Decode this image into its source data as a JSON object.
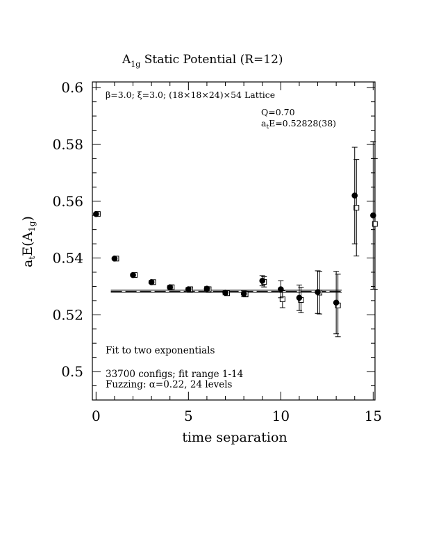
{
  "chart_data": {
    "type": "scatter",
    "title_main": "A",
    "title_sub": "1g",
    "title_rest": " Static Potential (R=12)",
    "xlabel": "time separation",
    "ylabel_main": "a",
    "ylabel_t": "t",
    "ylabel_mid": "E(A",
    "ylabel_sub": "1g",
    "ylabel_end": ")",
    "xlim": [
      -0.2,
      15.1
    ],
    "ylim": [
      0.49,
      0.602
    ],
    "x_ticks": [
      0,
      5,
      10,
      15
    ],
    "x_tick_labels": [
      "0",
      "5",
      "10",
      "15"
    ],
    "y_ticks": [
      0.5,
      0.52,
      0.54,
      0.56,
      0.58,
      0.6
    ],
    "y_tick_labels": [
      "0.5",
      "0.52",
      "0.54",
      "0.56",
      "0.58",
      "0.6"
    ],
    "annotations": {
      "lattice": "β=3.0; ξ=3.0; (18×18×24)×54 Lattice",
      "q": "Q=0.70",
      "energy_a": "a",
      "energy_t": "t",
      "energy_rest": "E=0.52828(38)",
      "fit": "Fit to two exponentials",
      "configs": "33700 configs; fit range 1-14",
      "fuzzing": "Fuzzing: α=0.22, 24 levels"
    },
    "fit": {
      "x_range": [
        0.8,
        13.3
      ],
      "value": 0.52828,
      "error": 0.00038
    },
    "series": [
      {
        "marker": "filled-circle",
        "x": [
          0,
          1,
          2,
          3,
          4,
          5,
          6,
          7,
          8,
          9,
          10,
          11,
          12,
          13,
          14,
          15
        ],
        "y": [
          0.5555,
          0.5398,
          0.534,
          0.5315,
          0.5297,
          0.529,
          0.5292,
          0.5278,
          0.5274,
          0.532,
          0.529,
          0.526,
          0.528,
          0.5243,
          0.562,
          0.555
        ],
        "err": [
          0.0003,
          0.0004,
          0.0004,
          0.0005,
          0.0006,
          0.0006,
          0.0007,
          0.0008,
          0.001,
          0.0018,
          0.003,
          0.0045,
          0.0075,
          0.011,
          0.017,
          0.026
        ]
      },
      {
        "marker": "open-square",
        "x": [
          0,
          1,
          2,
          3,
          4,
          5,
          6,
          7,
          8,
          9,
          10,
          11,
          12,
          13,
          14,
          15
        ],
        "y": [
          0.5555,
          0.5398,
          0.534,
          0.5315,
          0.5297,
          0.529,
          0.529,
          0.5276,
          0.5273,
          0.5316,
          0.5255,
          0.5252,
          0.5278,
          0.5233,
          0.5577,
          0.552
        ],
        "err": [
          0.0003,
          0.0004,
          0.0004,
          0.0005,
          0.0006,
          0.0006,
          0.0007,
          0.0008,
          0.001,
          0.0018,
          0.003,
          0.0045,
          0.0075,
          0.011,
          0.017,
          0.023
        ]
      }
    ]
  }
}
